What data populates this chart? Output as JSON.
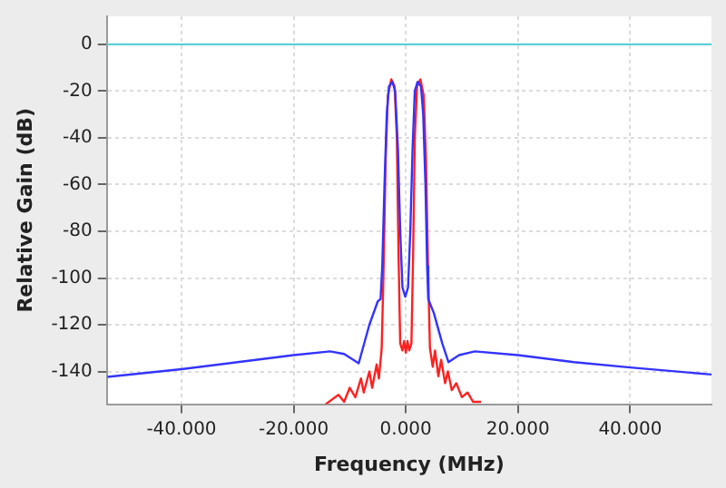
{
  "chart_data": {
    "type": "line",
    "xlabel": "Frequency (MHz)",
    "ylabel": "Relative Gain (dB)",
    "xlim": [
      -53.3,
      54.5
    ],
    "ylim": [
      -154,
      12
    ],
    "xticks": [
      {
        "value": -40,
        "label": "-40.000"
      },
      {
        "value": -20,
        "label": "-20.000"
      },
      {
        "value": 0,
        "label": "0.000"
      },
      {
        "value": 20,
        "label": "20.000"
      },
      {
        "value": 40,
        "label": "40.000"
      }
    ],
    "yticks": [
      -140,
      -120,
      -100,
      -80,
      -60,
      -40,
      -20,
      0
    ],
    "grid": true,
    "legend": false,
    "marker": "none",
    "line_style": "solid",
    "ref_lines": [
      {
        "axis": "y",
        "value": 0,
        "color": "#5ccfd6"
      }
    ],
    "series": [
      {
        "color": "#3333ff",
        "x": [
          -53.2,
          -40,
          -30,
          -20,
          -13.5,
          -11,
          -8.4,
          -6.5,
          -5,
          -4.5,
          -4.2,
          -3.8,
          -3.4,
          -3.0,
          -2.4,
          -1.9,
          -1.4,
          -1.0,
          -0.6,
          -0.1,
          0.4,
          0.8,
          1.2,
          1.6,
          2.1,
          2.7,
          3.1,
          3.5,
          3.8,
          4.0,
          5,
          6.5,
          7.6,
          9.5,
          12.3,
          20,
          30,
          40,
          54.5
        ],
        "values": [
          -142.3,
          -139,
          -136,
          -133,
          -131.4,
          -132.5,
          -136.5,
          -120,
          -110,
          -109,
          -95,
          -60,
          -30,
          -18,
          -16,
          -20,
          -45,
          -80,
          -104,
          -108,
          -104,
          -80,
          -45,
          -20,
          -16,
          -18,
          -30,
          -60,
          -95,
          -109,
          -115,
          -128,
          -136,
          -133,
          -131.4,
          -133,
          -136,
          -138.3,
          -141.3
        ]
      },
      {
        "color": "#ff2020",
        "x": [
          -14.3,
          -12,
          -11,
          -10,
          -9,
          -8,
          -7.5,
          -6.5,
          -6,
          -5.2,
          -4.8,
          -4.3,
          -4.0,
          -3.6,
          -3.2,
          -2.6,
          -2.0,
          -1.6,
          -1.3,
          -1.0,
          -0.6,
          -0.3,
          0,
          0.3,
          0.6,
          1.0,
          1.3,
          1.6,
          2.0,
          2.6,
          3.2,
          3.6,
          4.0,
          4.3,
          4.8,
          5.2,
          5.8,
          6.3,
          7,
          7.5,
          8.2,
          9,
          10,
          11,
          12,
          13.4
        ],
        "values": [
          -154,
          -150,
          -153,
          -147,
          -151,
          -143,
          -149,
          -140,
          -147,
          -137,
          -143,
          -130,
          -100,
          -50,
          -22,
          -15,
          -18,
          -40,
          -90,
          -128,
          -131,
          -127,
          -132,
          -127,
          -131,
          -128,
          -90,
          -40,
          -18,
          -15,
          -22,
          -50,
          -100,
          -130,
          -138,
          -131,
          -142,
          -135,
          -145,
          -140,
          -148,
          -145,
          -151,
          -149,
          -153,
          -153
        ]
      }
    ]
  }
}
